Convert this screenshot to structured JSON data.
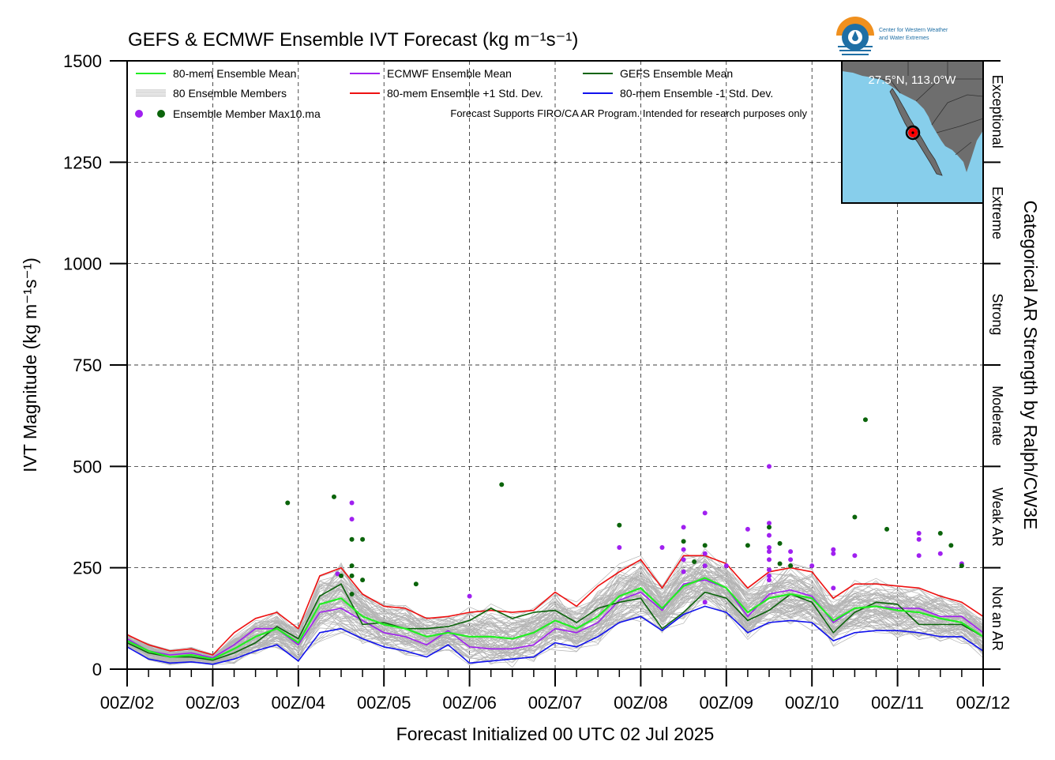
{
  "chart_data": {
    "type": "line",
    "title": "GEFS & ECMWF Ensemble IVT Forecast (kg m⁻¹s⁻¹)",
    "xlabel": "Forecast Initialized 00 UTC 02 Jul 2025",
    "ylabel": "IVT Magnitude (kg m⁻¹s⁻¹)",
    "right_axis_label": "Categorical AR Strength by Ralph/CW3E",
    "ylim": [
      0,
      1500
    ],
    "xlim": [
      0,
      240
    ],
    "x_unit": "forecast hours",
    "y_ticks": [
      0,
      250,
      500,
      750,
      1000,
      1250,
      1500
    ],
    "x_tick_labels": [
      "00Z/02",
      "00Z/03",
      "00Z/04",
      "00Z/05",
      "00Z/06",
      "00Z/07",
      "00Z/08",
      "00Z/09",
      "00Z/10",
      "00Z/11",
      "00Z/12"
    ],
    "grid": true,
    "categories_right": [
      {
        "label": "Not an AR",
        "from": 0,
        "to": 250
      },
      {
        "label": "Weak AR",
        "from": 250,
        "to": 500
      },
      {
        "label": "Moderate",
        "from": 500,
        "to": 750
      },
      {
        "label": "Strong",
        "from": 750,
        "to": 1000
      },
      {
        "label": "Extreme",
        "from": 1000,
        "to": 1250
      },
      {
        "label": "Exceptional",
        "from": 1250,
        "to": 1500
      }
    ],
    "legend": {
      "placement": "top-left",
      "entries": [
        {
          "label": "80-mem Ensemble Mean",
          "color": "#22ee22",
          "kind": "line"
        },
        {
          "label": "ECMWF Ensemble Mean",
          "color": "#a020f0",
          "kind": "line"
        },
        {
          "label": "GEFS Ensemble Mean",
          "color": "#0b640b",
          "kind": "line"
        },
        {
          "label": "80 Ensemble Members",
          "color": "#b4b4b4",
          "kind": "multiline"
        },
        {
          "label": "80-mem Ensemble +1 Std. Dev.",
          "color": "#ee1111",
          "kind": "line"
        },
        {
          "label": "80-mem Ensemble -1 Std. Dev.",
          "color": "#1111ee",
          "kind": "line"
        }
      ],
      "dots_label": "Ensemble Member Max10.ma",
      "note": "Forecast Supports FIRO/CA AR Program. Intended for research purposes only"
    },
    "x": [
      0,
      6,
      12,
      18,
      24,
      30,
      36,
      42,
      48,
      54,
      60,
      66,
      72,
      78,
      84,
      90,
      96,
      102,
      108,
      114,
      120,
      126,
      132,
      138,
      144,
      150,
      156,
      162,
      168,
      174,
      180,
      186,
      192,
      198,
      204,
      210,
      216,
      222,
      228,
      234,
      240
    ],
    "series": [
      {
        "name": "80-mem Ensemble Mean",
        "color": "#22ee22",
        "values": [
          70,
          45,
          30,
          35,
          25,
          50,
          80,
          100,
          65,
          160,
          175,
          130,
          110,
          100,
          80,
          90,
          80,
          80,
          75,
          90,
          120,
          100,
          130,
          180,
          200,
          150,
          205,
          225,
          200,
          140,
          175,
          185,
          175,
          120,
          150,
          155,
          145,
          140,
          125,
          115,
          80
        ]
      },
      {
        "name": "ECMWF Ensemble Mean",
        "color": "#a020f0",
        "values": [
          75,
          45,
          35,
          40,
          28,
          60,
          100,
          100,
          60,
          140,
          150,
          120,
          90,
          80,
          60,
          95,
          55,
          50,
          50,
          60,
          100,
          90,
          115,
          170,
          190,
          145,
          210,
          220,
          200,
          130,
          185,
          195,
          180,
          115,
          150,
          155,
          150,
          150,
          130,
          130,
          90
        ]
      },
      {
        "name": "GEFS Ensemble Mean",
        "color": "#0b640b",
        "values": [
          65,
          40,
          30,
          30,
          22,
          40,
          65,
          105,
          75,
          180,
          210,
          110,
          115,
          100,
          100,
          105,
          120,
          150,
          125,
          140,
          145,
          115,
          150,
          165,
          175,
          100,
          140,
          190,
          175,
          120,
          145,
          185,
          165,
          90,
          140,
          165,
          160,
          110,
          110,
          110,
          80
        ]
      },
      {
        "name": "80-mem Ensemble +1 Std. Dev.",
        "color": "#ee1111",
        "values": [
          85,
          60,
          45,
          50,
          35,
          90,
          125,
          140,
          100,
          230,
          250,
          185,
          155,
          150,
          125,
          130,
          140,
          145,
          140,
          145,
          190,
          155,
          205,
          240,
          270,
          200,
          280,
          280,
          260,
          200,
          240,
          250,
          240,
          175,
          210,
          210,
          205,
          200,
          180,
          165,
          130
        ]
      },
      {
        "name": "80-mem Ensemble -1 Std. Dev.",
        "color": "#1111ee",
        "values": [
          55,
          25,
          15,
          18,
          12,
          25,
          45,
          60,
          20,
          90,
          100,
          75,
          55,
          45,
          30,
          60,
          15,
          20,
          25,
          30,
          65,
          55,
          80,
          115,
          130,
          95,
          135,
          155,
          140,
          90,
          115,
          120,
          115,
          70,
          90,
          95,
          95,
          90,
          80,
          80,
          45
        ]
      }
    ],
    "max_dots": [
      {
        "x": 45,
        "y": 410,
        "color": "#0b640b"
      },
      {
        "x": 58,
        "y": 425,
        "color": "#0b640b"
      },
      {
        "x": 59,
        "y": 235,
        "color": "#a020f0"
      },
      {
        "x": 60,
        "y": 230,
        "color": "#0b640b"
      },
      {
        "x": 63,
        "y": 410,
        "color": "#a020f0"
      },
      {
        "x": 63,
        "y": 370,
        "color": "#a020f0"
      },
      {
        "x": 63,
        "y": 320,
        "color": "#0b640b"
      },
      {
        "x": 63,
        "y": 255,
        "color": "#0b640b"
      },
      {
        "x": 63,
        "y": 230,
        "color": "#0b640b"
      },
      {
        "x": 63,
        "y": 185,
        "color": "#0b640b"
      },
      {
        "x": 66,
        "y": 320,
        "color": "#0b640b"
      },
      {
        "x": 66,
        "y": 220,
        "color": "#0b640b"
      },
      {
        "x": 81,
        "y": 210,
        "color": "#0b640b"
      },
      {
        "x": 96,
        "y": 180,
        "color": "#a020f0"
      },
      {
        "x": 105,
        "y": 455,
        "color": "#0b640b"
      },
      {
        "x": 138,
        "y": 355,
        "color": "#0b640b"
      },
      {
        "x": 138,
        "y": 300,
        "color": "#a020f0"
      },
      {
        "x": 150,
        "y": 300,
        "color": "#a020f0"
      },
      {
        "x": 156,
        "y": 350,
        "color": "#a020f0"
      },
      {
        "x": 156,
        "y": 315,
        "color": "#0b640b"
      },
      {
        "x": 156,
        "y": 295,
        "color": "#a020f0"
      },
      {
        "x": 156,
        "y": 270,
        "color": "#a020f0"
      },
      {
        "x": 156,
        "y": 240,
        "color": "#a020f0"
      },
      {
        "x": 159,
        "y": 265,
        "color": "#0b640b"
      },
      {
        "x": 162,
        "y": 385,
        "color": "#a020f0"
      },
      {
        "x": 162,
        "y": 305,
        "color": "#0b640b"
      },
      {
        "x": 162,
        "y": 285,
        "color": "#a020f0"
      },
      {
        "x": 162,
        "y": 255,
        "color": "#a020f0"
      },
      {
        "x": 162,
        "y": 165,
        "color": "#a020f0"
      },
      {
        "x": 168,
        "y": 255,
        "color": "#a020f0"
      },
      {
        "x": 174,
        "y": 345,
        "color": "#a020f0"
      },
      {
        "x": 174,
        "y": 305,
        "color": "#0b640b"
      },
      {
        "x": 180,
        "y": 500,
        "color": "#a020f0"
      },
      {
        "x": 180,
        "y": 360,
        "color": "#a020f0"
      },
      {
        "x": 180,
        "y": 350,
        "color": "#0b640b"
      },
      {
        "x": 180,
        "y": 330,
        "color": "#a020f0"
      },
      {
        "x": 180,
        "y": 300,
        "color": "#a020f0"
      },
      {
        "x": 180,
        "y": 290,
        "color": "#a020f0"
      },
      {
        "x": 180,
        "y": 270,
        "color": "#a020f0"
      },
      {
        "x": 180,
        "y": 245,
        "color": "#a020f0"
      },
      {
        "x": 180,
        "y": 230,
        "color": "#a020f0"
      },
      {
        "x": 180,
        "y": 220,
        "color": "#a020f0"
      },
      {
        "x": 183,
        "y": 310,
        "color": "#0b640b"
      },
      {
        "x": 183,
        "y": 260,
        "color": "#0b640b"
      },
      {
        "x": 186,
        "y": 290,
        "color": "#a020f0"
      },
      {
        "x": 186,
        "y": 270,
        "color": "#a020f0"
      },
      {
        "x": 186,
        "y": 255,
        "color": "#0b640b"
      },
      {
        "x": 192,
        "y": 255,
        "color": "#a020f0"
      },
      {
        "x": 198,
        "y": 295,
        "color": "#a020f0"
      },
      {
        "x": 198,
        "y": 285,
        "color": "#a020f0"
      },
      {
        "x": 198,
        "y": 200,
        "color": "#a020f0"
      },
      {
        "x": 204,
        "y": 375,
        "color": "#0b640b"
      },
      {
        "x": 204,
        "y": 280,
        "color": "#a020f0"
      },
      {
        "x": 207,
        "y": 615,
        "color": "#0b640b"
      },
      {
        "x": 213,
        "y": 345,
        "color": "#0b640b"
      },
      {
        "x": 222,
        "y": 335,
        "color": "#a020f0"
      },
      {
        "x": 222,
        "y": 320,
        "color": "#a020f0"
      },
      {
        "x": 222,
        "y": 280,
        "color": "#a020f0"
      },
      {
        "x": 228,
        "y": 335,
        "color": "#0b640b"
      },
      {
        "x": 228,
        "y": 285,
        "color": "#a020f0"
      },
      {
        "x": 231,
        "y": 305,
        "color": "#0b640b"
      },
      {
        "x": 234,
        "y": 260,
        "color": "#a020f0"
      },
      {
        "x": 234,
        "y": 255,
        "color": "#0b640b"
      }
    ]
  },
  "inset_map": {
    "label": "27.5°N, 113.0°W",
    "marker_color": "#ff0000",
    "ocean_color": "#87ceeb",
    "land_color": "#6e6e6e"
  },
  "logo": {
    "line1": "Center for Western Weather",
    "line2": "and Water Extremes"
  }
}
